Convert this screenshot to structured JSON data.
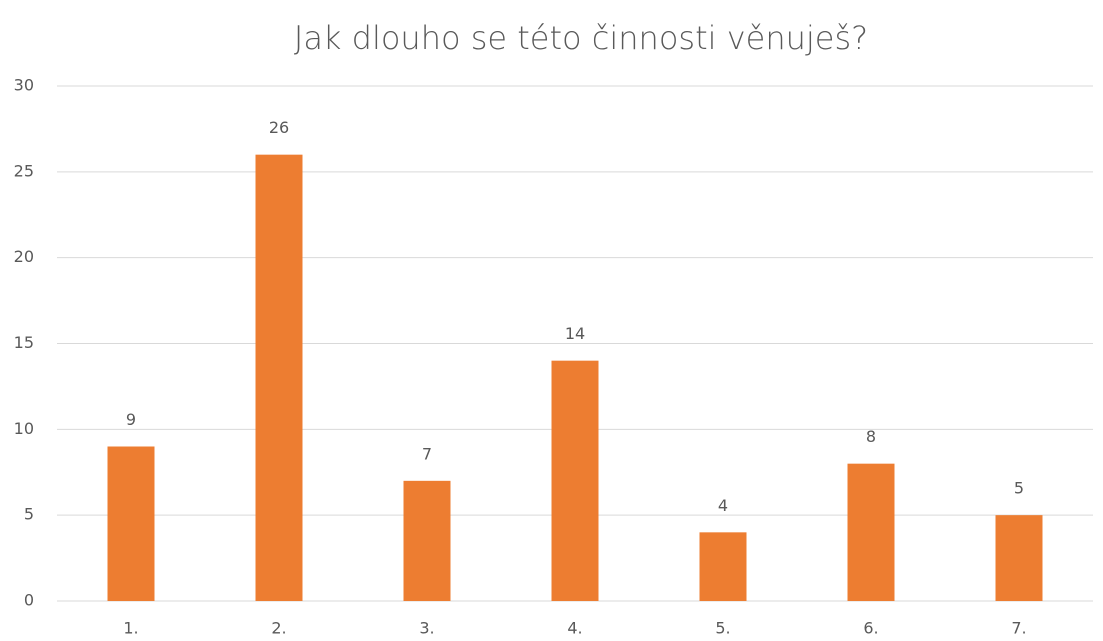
{
  "chart_data": {
    "type": "bar",
    "title": "Jak dlouho se této činnosti věnuješ?",
    "categories": [
      "1.",
      "2.",
      "3.",
      "4.",
      "5.",
      "6.",
      "7."
    ],
    "values": [
      9,
      26,
      7,
      14,
      4,
      8,
      5
    ],
    "color": "#ed7d31",
    "ylim": [
      0,
      30
    ],
    "yticks": [
      0,
      5,
      10,
      15,
      20,
      25,
      30
    ],
    "grid": true,
    "data_labels": true
  }
}
